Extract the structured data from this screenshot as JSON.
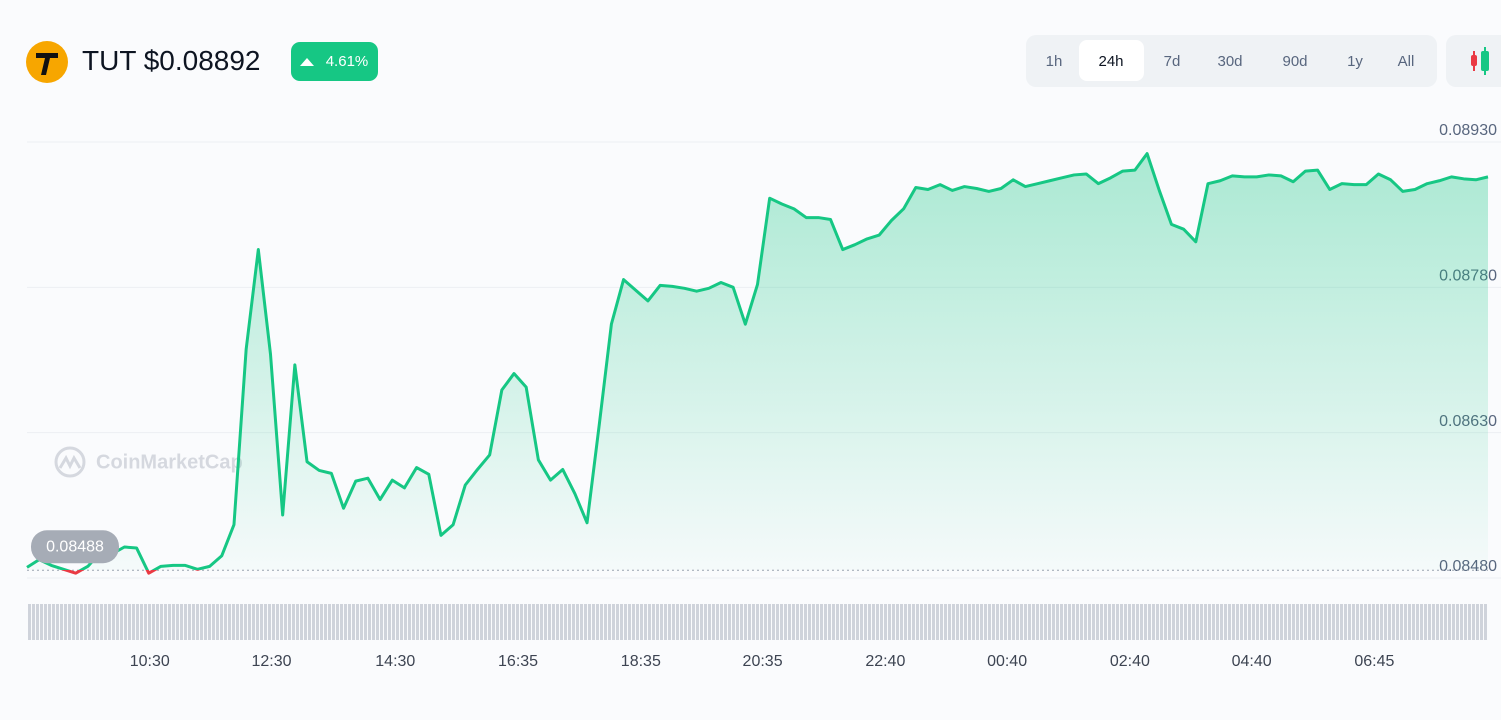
{
  "header": {
    "symbol": "TUT",
    "price": "$0.08892",
    "change": "4.61%",
    "timeframes": [
      "1h",
      "24h",
      "7d",
      "30d",
      "90d",
      "1y",
      "All"
    ],
    "active_timeframe": 1
  },
  "chart_data": {
    "type": "line",
    "watermark": "CoinMarketCap",
    "color": "#16c784",
    "down_color": "#ea3943",
    "baseline": 0.08488,
    "xlim": [
      0,
      1440
    ],
    "ylim": [
      0.0848,
      0.0893
    ],
    "yticks": [
      {
        "value": 0.0893,
        "label": "0.08930"
      },
      {
        "value": 0.0878,
        "label": "0.08780"
      },
      {
        "value": 0.0863,
        "label": "0.08630"
      },
      {
        "value": 0.0848,
        "label": "0.08480"
      }
    ],
    "xticks": [
      {
        "value": 121,
        "label": "10:30"
      },
      {
        "value": 241,
        "label": "12:30"
      },
      {
        "value": 363,
        "label": "14:30"
      },
      {
        "value": 484,
        "label": "16:35"
      },
      {
        "value": 605,
        "label": "18:35"
      },
      {
        "value": 725,
        "label": "20:35"
      },
      {
        "value": 846,
        "label": "22:40"
      },
      {
        "value": 966,
        "label": "00:40"
      },
      {
        "value": 1087,
        "label": "02:40"
      },
      {
        "value": 1207,
        "label": "04:40"
      },
      {
        "value": 1328,
        "label": "06:45"
      }
    ],
    "grid": true,
    "x": [
      0,
      12,
      24,
      36,
      48,
      60,
      72,
      84,
      96,
      108,
      120,
      132,
      144,
      156,
      168,
      180,
      192,
      204,
      216,
      228,
      240,
      252,
      264,
      276,
      288,
      300,
      312,
      324,
      336,
      348,
      360,
      372,
      384,
      396,
      408,
      420,
      432,
      444,
      456,
      468,
      480,
      492,
      504,
      516,
      528,
      540,
      552,
      564,
      576,
      588,
      600,
      612,
      624,
      636,
      648,
      660,
      672,
      684,
      696,
      708,
      720,
      732,
      744,
      756,
      768,
      780,
      792,
      804,
      816,
      828,
      840,
      852,
      864,
      876,
      888,
      900,
      912,
      924,
      936,
      948,
      960,
      972,
      984,
      996,
      1008,
      1020,
      1032,
      1044,
      1056,
      1068,
      1080,
      1092,
      1104,
      1116,
      1128,
      1140,
      1152,
      1164,
      1176,
      1188,
      1200,
      1212,
      1224,
      1236,
      1248,
      1260,
      1272,
      1284,
      1296,
      1308,
      1320,
      1332,
      1344,
      1356,
      1368,
      1380,
      1392,
      1404,
      1416,
      1428,
      1440
    ],
    "values": [
      0.08491,
      0.08499,
      0.08493,
      0.08489,
      0.08485,
      0.08492,
      0.08506,
      0.08505,
      0.08512,
      0.08511,
      0.08485,
      0.08492,
      0.08493,
      0.08493,
      0.08489,
      0.08492,
      0.08503,
      0.08535,
      0.08716,
      0.08819,
      0.08711,
      0.08545,
      0.087,
      0.086,
      0.08591,
      0.08588,
      0.08552,
      0.0858,
      0.08583,
      0.08561,
      0.08581,
      0.08573,
      0.08594,
      0.08587,
      0.08524,
      0.08535,
      0.08576,
      0.08592,
      0.08607,
      0.08674,
      0.08691,
      0.08677,
      0.08602,
      0.08581,
      0.08592,
      0.08567,
      0.08537,
      0.08638,
      0.08742,
      0.08788,
      0.08777,
      0.08766,
      0.08782,
      0.08781,
      0.08779,
      0.08776,
      0.08779,
      0.08785,
      0.0878,
      0.08742,
      0.08783,
      0.08872,
      0.08866,
      0.08861,
      0.08852,
      0.08852,
      0.0885,
      0.08819,
      0.08824,
      0.0883,
      0.08834,
      0.08849,
      0.08861,
      0.08883,
      0.08881,
      0.08886,
      0.0888,
      0.08884,
      0.08882,
      0.08879,
      0.08882,
      0.08891,
      0.08884,
      0.08887,
      0.0889,
      0.08893,
      0.08896,
      0.08897,
      0.08887,
      0.08893,
      0.089,
      0.08901,
      0.08918,
      0.0888,
      0.08845,
      0.0884,
      0.08827,
      0.08887,
      0.0889,
      0.08895,
      0.08894,
      0.08894,
      0.08896,
      0.08895,
      0.08889,
      0.089,
      0.08901,
      0.08881,
      0.08887,
      0.08886,
      0.08886,
      0.08897,
      0.08891,
      0.08879,
      0.08881,
      0.08887,
      0.0889,
      0.08894,
      0.08892,
      0.08891,
      0.08894
    ]
  }
}
